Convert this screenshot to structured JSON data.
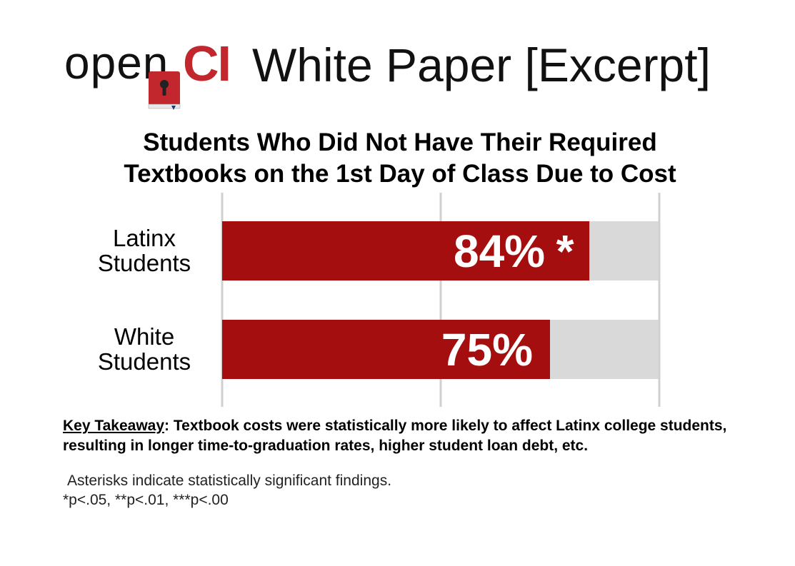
{
  "header": {
    "logo_open": "open",
    "logo_ci": "CI",
    "title": "White Paper [Excerpt]"
  },
  "colors": {
    "bar": "#a50e0e",
    "track": "#d9d9d9",
    "grid": "#d0d0d0",
    "brand_red": "#c1272d"
  },
  "chart_data": {
    "type": "bar",
    "orientation": "horizontal",
    "title_lines": [
      "Students Who Did Not Have Their Required",
      "Textbooks on the 1st Day of Class Due to Cost"
    ],
    "categories": [
      "Latinx Students",
      "White Students"
    ],
    "category_lines": [
      [
        "Latinx",
        "Students"
      ],
      [
        "White",
        "Students"
      ]
    ],
    "values": [
      84,
      75
    ],
    "value_labels": [
      "84%",
      "75%"
    ],
    "annotations": [
      "*",
      ""
    ],
    "xlim": [
      0,
      100
    ],
    "unit": "%",
    "grid": true
  },
  "takeaway": {
    "label": "Key Takeaway",
    "text": ": Textbook costs were statistically more likely to affect Latinx college students, resulting in longer time-to-graduation rates, higher student loan debt, etc."
  },
  "notes": {
    "line1": "Asterisks indicate statistically significant findings.",
    "line2": "*p<.05, **p<.01, ***p<.00"
  }
}
